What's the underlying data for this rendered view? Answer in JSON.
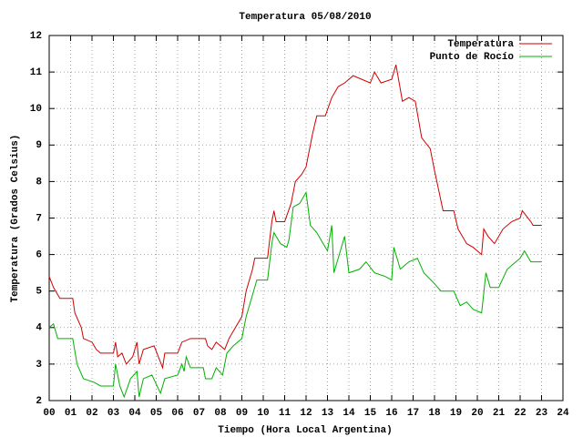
{
  "chart_data": {
    "type": "line",
    "title": "Temperatura 05/08/2010",
    "xlabel": "Tiempo (Hora Local Argentina)",
    "ylabel": "Temperatura (Grados Celsius)",
    "xlim": [
      0,
      24
    ],
    "ylim": [
      2,
      12
    ],
    "xticks": [
      {
        "value": 0,
        "label": "00"
      },
      {
        "value": 1,
        "label": "01"
      },
      {
        "value": 2,
        "label": "02"
      },
      {
        "value": 3,
        "label": "03"
      },
      {
        "value": 4,
        "label": "04"
      },
      {
        "value": 5,
        "label": "05"
      },
      {
        "value": 6,
        "label": "06"
      },
      {
        "value": 7,
        "label": "07"
      },
      {
        "value": 8,
        "label": "08"
      },
      {
        "value": 9,
        "label": "09"
      },
      10,
      11,
      12,
      13,
      14,
      15,
      16,
      17,
      18,
      19,
      20,
      21,
      22,
      23,
      24
    ],
    "yticks": [
      2,
      3,
      4,
      5,
      6,
      7,
      8,
      9,
      10,
      11,
      12
    ],
    "grid": true,
    "legend": "top-right",
    "series": [
      {
        "name": "Temperatura",
        "color": "#d00000",
        "x": [
          0,
          0.2,
          0.5,
          1.1,
          1.2,
          1.5,
          1.6,
          2.0,
          2.2,
          2.4,
          3.0,
          3.1,
          3.2,
          3.4,
          3.6,
          3.9,
          4.1,
          4.2,
          4.4,
          4.9,
          5.3,
          5.4,
          6.0,
          6.2,
          6.6,
          7.3,
          7.4,
          7.6,
          7.8,
          8.2,
          8.4,
          8.7,
          9.0,
          9.2,
          9.5,
          9.6,
          10.2,
          10.4,
          10.5,
          10.6,
          11.0,
          11.3,
          11.5,
          11.8,
          12.0,
          12.3,
          12.5,
          12.9,
          13.2,
          13.5,
          13.8,
          14.2,
          14.6,
          15.0,
          15.2,
          15.5,
          16.0,
          16.2,
          16.5,
          16.8,
          17.1,
          17.4,
          17.8,
          18.0,
          18.4,
          18.9,
          19.1,
          19.5,
          19.8,
          20.2,
          20.3,
          20.5,
          20.8,
          21.2,
          21.6,
          22.0,
          22.1,
          22.5,
          22.6,
          23.0
        ],
        "values": [
          5.4,
          5.1,
          4.8,
          4.8,
          4.4,
          4.0,
          3.7,
          3.6,
          3.4,
          3.3,
          3.3,
          3.6,
          3.2,
          3.3,
          3.0,
          3.2,
          3.6,
          3.0,
          3.4,
          3.5,
          2.9,
          3.3,
          3.3,
          3.6,
          3.7,
          3.7,
          3.5,
          3.4,
          3.6,
          3.4,
          3.7,
          4.0,
          4.3,
          5.0,
          5.6,
          5.9,
          5.9,
          6.9,
          7.2,
          6.9,
          6.9,
          7.4,
          8.0,
          8.2,
          8.4,
          9.3,
          9.8,
          9.8,
          10.3,
          10.6,
          10.7,
          10.9,
          10.8,
          10.7,
          11.0,
          10.7,
          10.8,
          11.2,
          10.2,
          10.3,
          10.2,
          9.2,
          8.9,
          8.3,
          7.2,
          7.2,
          6.7,
          6.3,
          6.2,
          6.0,
          6.7,
          6.5,
          6.3,
          6.7,
          6.9,
          7.0,
          7.2,
          6.9,
          6.8,
          6.8
        ]
      },
      {
        "name": "Punto de Rocío",
        "color": "#00b000",
        "x": [
          0,
          0.2,
          0.4,
          1.1,
          1.3,
          1.6,
          2.1,
          2.4,
          2.8,
          3.0,
          3.1,
          3.3,
          3.5,
          3.8,
          4.1,
          4.2,
          4.4,
          4.8,
          5.2,
          5.4,
          6.0,
          6.2,
          6.3,
          6.4,
          6.6,
          7.2,
          7.3,
          7.6,
          7.8,
          8.1,
          8.3,
          8.6,
          9.0,
          9.2,
          9.5,
          9.7,
          10.2,
          10.4,
          10.5,
          10.8,
          11.1,
          11.2,
          11.4,
          11.7,
          12.0,
          12.2,
          12.5,
          12.8,
          13.0,
          13.2,
          13.3,
          13.6,
          13.8,
          14.0,
          14.5,
          14.8,
          15.2,
          15.7,
          16.0,
          16.1,
          16.4,
          16.8,
          17.2,
          17.5,
          18.0,
          18.3,
          18.9,
          19.2,
          19.5,
          19.8,
          20.2,
          20.4,
          20.6,
          21.0,
          21.4,
          21.8,
          22.0,
          22.2,
          22.5,
          23.0
        ],
        "values": [
          4.0,
          4.1,
          3.7,
          3.7,
          3.0,
          2.6,
          2.5,
          2.4,
          2.4,
          2.4,
          3.0,
          2.4,
          2.1,
          2.6,
          2.8,
          2.1,
          2.6,
          2.7,
          2.2,
          2.6,
          2.7,
          3.0,
          2.8,
          3.2,
          2.9,
          2.9,
          2.6,
          2.6,
          2.9,
          2.7,
          3.3,
          3.5,
          3.7,
          4.3,
          4.9,
          5.3,
          5.3,
          6.3,
          6.6,
          6.3,
          6.2,
          6.4,
          7.3,
          7.4,
          7.7,
          6.8,
          6.6,
          6.3,
          6.1,
          6.8,
          5.5,
          6.1,
          6.5,
          5.5,
          5.6,
          5.8,
          5.5,
          5.4,
          5.3,
          6.2,
          5.6,
          5.8,
          5.9,
          5.5,
          5.2,
          5.0,
          5.0,
          4.6,
          4.7,
          4.5,
          4.4,
          5.5,
          5.1,
          5.1,
          5.6,
          5.8,
          5.9,
          6.1,
          5.8,
          5.8
        ]
      }
    ]
  }
}
